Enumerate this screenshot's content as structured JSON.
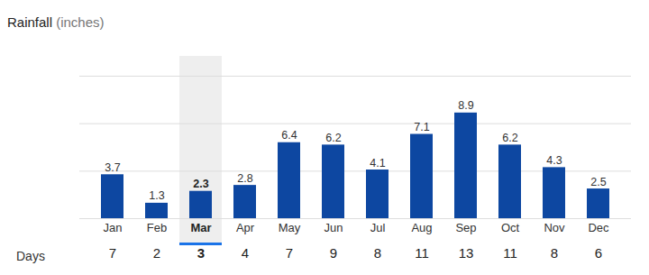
{
  "chart_data": {
    "type": "bar",
    "title": "Rainfall",
    "subtitle": "(inches)",
    "categories": [
      "Jan",
      "Feb",
      "Mar",
      "Apr",
      "May",
      "Jun",
      "Jul",
      "Aug",
      "Sep",
      "Oct",
      "Nov",
      "Dec"
    ],
    "values": [
      3.7,
      1.3,
      2.3,
      2.8,
      6.4,
      6.2,
      4.1,
      7.1,
      8.9,
      6.2,
      4.3,
      2.5
    ],
    "color": "#0d47a1",
    "ylim": [
      0,
      12
    ],
    "yticks": [
      0,
      4,
      8,
      12
    ],
    "grid": true,
    "data_labels": true,
    "tick_labels": "x",
    "days_label": "Days",
    "days": [
      7,
      2,
      3,
      4,
      7,
      9,
      8,
      11,
      13,
      11,
      8,
      6
    ],
    "highlight": "Mar"
  }
}
